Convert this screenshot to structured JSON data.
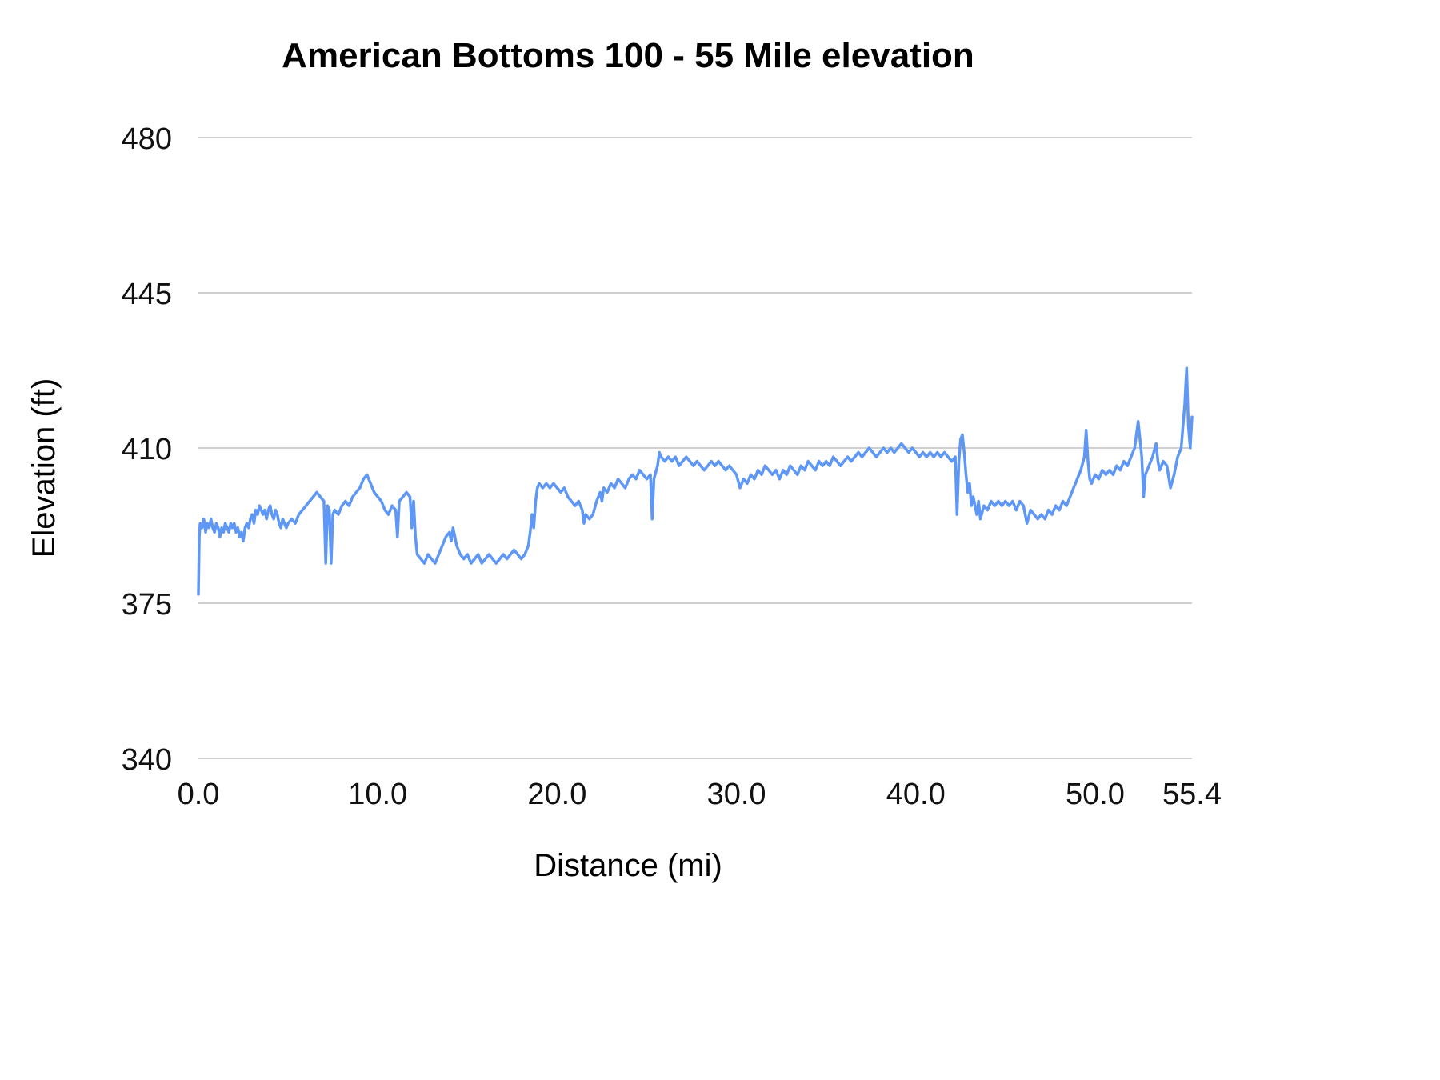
{
  "title": "American Bottoms 100 - 55 Mile elevation",
  "chart_data": {
    "type": "line",
    "title": "American Bottoms 100 - 55 Mile elevation",
    "xlabel": "Distance (mi)",
    "ylabel": "Elevation (ft)",
    "xlim": [
      0,
      55.4
    ],
    "ylim": [
      340,
      480
    ],
    "x_ticks": [
      0.0,
      10.0,
      20.0,
      30.0,
      40.0,
      50.0,
      55.4
    ],
    "x_tick_labels": [
      "0.0",
      "10.0",
      "20.0",
      "30.0",
      "40.0",
      "50.0",
      "55.4"
    ],
    "y_ticks": [
      340,
      375,
      410,
      445,
      480
    ],
    "y_tick_labels": [
      "340",
      "375",
      "410",
      "445",
      "480"
    ],
    "grid": true,
    "legend": "none",
    "line_color": "#5e97f6",
    "grid_color": "#cfcfcf",
    "points": [
      [
        0,
        377
      ],
      [
        0.05,
        390
      ],
      [
        0.1,
        393
      ],
      [
        0.2,
        392
      ],
      [
        0.3,
        394
      ],
      [
        0.4,
        391
      ],
      [
        0.5,
        393
      ],
      [
        0.6,
        392
      ],
      [
        0.7,
        394
      ],
      [
        0.8,
        392
      ],
      [
        0.9,
        391
      ],
      [
        1.0,
        393
      ],
      [
        1.1,
        392
      ],
      [
        1.2,
        390
      ],
      [
        1.3,
        392
      ],
      [
        1.4,
        391
      ],
      [
        1.5,
        393
      ],
      [
        1.6,
        392
      ],
      [
        1.7,
        391
      ],
      [
        1.8,
        393
      ],
      [
        1.9,
        392
      ],
      [
        2.0,
        393
      ],
      [
        2.1,
        391
      ],
      [
        2.2,
        392
      ],
      [
        2.3,
        390
      ],
      [
        2.4,
        391
      ],
      [
        2.5,
        389
      ],
      [
        2.6,
        392
      ],
      [
        2.7,
        393
      ],
      [
        2.8,
        392
      ],
      [
        2.9,
        394
      ],
      [
        3.0,
        395
      ],
      [
        3.1,
        393
      ],
      [
        3.2,
        396
      ],
      [
        3.3,
        395
      ],
      [
        3.4,
        397
      ],
      [
        3.5,
        396
      ],
      [
        3.6,
        395
      ],
      [
        3.7,
        396
      ],
      [
        3.8,
        394
      ],
      [
        3.9,
        396
      ],
      [
        4.0,
        397
      ],
      [
        4.1,
        395
      ],
      [
        4.2,
        394
      ],
      [
        4.3,
        396
      ],
      [
        4.4,
        395
      ],
      [
        4.5,
        393
      ],
      [
        4.6,
        392
      ],
      [
        4.7,
        394
      ],
      [
        4.8,
        393
      ],
      [
        4.9,
        392
      ],
      [
        5.0,
        393
      ],
      [
        5.2,
        394
      ],
      [
        5.4,
        393
      ],
      [
        5.6,
        395
      ],
      [
        5.8,
        396
      ],
      [
        6.0,
        397
      ],
      [
        6.2,
        398
      ],
      [
        6.4,
        399
      ],
      [
        6.6,
        400
      ],
      [
        6.8,
        399
      ],
      [
        7.0,
        398
      ],
      [
        7.1,
        384
      ],
      [
        7.2,
        397
      ],
      [
        7.3,
        396
      ],
      [
        7.4,
        384
      ],
      [
        7.5,
        395
      ],
      [
        7.6,
        396
      ],
      [
        7.8,
        395
      ],
      [
        8.0,
        397
      ],
      [
        8.2,
        398
      ],
      [
        8.4,
        397
      ],
      [
        8.6,
        399
      ],
      [
        8.8,
        400
      ],
      [
        9.0,
        401
      ],
      [
        9.2,
        403
      ],
      [
        9.4,
        404
      ],
      [
        9.6,
        402
      ],
      [
        9.8,
        400
      ],
      [
        10.0,
        399
      ],
      [
        10.2,
        398
      ],
      [
        10.4,
        396
      ],
      [
        10.6,
        395
      ],
      [
        10.8,
        397
      ],
      [
        11.0,
        396
      ],
      [
        11.1,
        390
      ],
      [
        11.2,
        398
      ],
      [
        11.4,
        399
      ],
      [
        11.6,
        400
      ],
      [
        11.8,
        399
      ],
      [
        11.9,
        392
      ],
      [
        12.0,
        398
      ],
      [
        12.1,
        390
      ],
      [
        12.2,
        386
      ],
      [
        12.4,
        385
      ],
      [
        12.6,
        384
      ],
      [
        12.8,
        386
      ],
      [
        13.0,
        385
      ],
      [
        13.2,
        384
      ],
      [
        13.4,
        386
      ],
      [
        13.6,
        388
      ],
      [
        13.8,
        390
      ],
      [
        14.0,
        391
      ],
      [
        14.1,
        389
      ],
      [
        14.2,
        392
      ],
      [
        14.3,
        390
      ],
      [
        14.4,
        388
      ],
      [
        14.6,
        386
      ],
      [
        14.8,
        385
      ],
      [
        15.0,
        386
      ],
      [
        15.2,
        384
      ],
      [
        15.4,
        385
      ],
      [
        15.6,
        386
      ],
      [
        15.8,
        384
      ],
      [
        16.0,
        385
      ],
      [
        16.2,
        386
      ],
      [
        16.4,
        385
      ],
      [
        16.6,
        384
      ],
      [
        16.8,
        385
      ],
      [
        17.0,
        386
      ],
      [
        17.2,
        385
      ],
      [
        17.4,
        386
      ],
      [
        17.6,
        387
      ],
      [
        17.8,
        386
      ],
      [
        18.0,
        385
      ],
      [
        18.2,
        386
      ],
      [
        18.4,
        388
      ],
      [
        18.5,
        391
      ],
      [
        18.6,
        395
      ],
      [
        18.7,
        392
      ],
      [
        18.8,
        398
      ],
      [
        18.9,
        401
      ],
      [
        19.0,
        402
      ],
      [
        19.2,
        401
      ],
      [
        19.4,
        402
      ],
      [
        19.6,
        401
      ],
      [
        19.8,
        402
      ],
      [
        20.0,
        401
      ],
      [
        20.2,
        400
      ],
      [
        20.4,
        401
      ],
      [
        20.6,
        399
      ],
      [
        20.8,
        398
      ],
      [
        21.0,
        397
      ],
      [
        21.2,
        398
      ],
      [
        21.4,
        396
      ],
      [
        21.5,
        393
      ],
      [
        21.6,
        395
      ],
      [
        21.8,
        394
      ],
      [
        22.0,
        395
      ],
      [
        22.2,
        398
      ],
      [
        22.4,
        400
      ],
      [
        22.5,
        398
      ],
      [
        22.6,
        401
      ],
      [
        22.8,
        400
      ],
      [
        23.0,
        402
      ],
      [
        23.2,
        401
      ],
      [
        23.4,
        403
      ],
      [
        23.6,
        402
      ],
      [
        23.8,
        401
      ],
      [
        24.0,
        403
      ],
      [
        24.2,
        404
      ],
      [
        24.4,
        403
      ],
      [
        24.6,
        405
      ],
      [
        24.8,
        404
      ],
      [
        25.0,
        403
      ],
      [
        25.2,
        404
      ],
      [
        25.3,
        394
      ],
      [
        25.4,
        403
      ],
      [
        25.6,
        406
      ],
      [
        25.7,
        409
      ],
      [
        25.8,
        408
      ],
      [
        26.0,
        407
      ],
      [
        26.2,
        408
      ],
      [
        26.4,
        407
      ],
      [
        26.6,
        408
      ],
      [
        26.8,
        406
      ],
      [
        27.0,
        407
      ],
      [
        27.2,
        408
      ],
      [
        27.4,
        407
      ],
      [
        27.6,
        406
      ],
      [
        27.8,
        407
      ],
      [
        28.0,
        406
      ],
      [
        28.2,
        405
      ],
      [
        28.4,
        406
      ],
      [
        28.6,
        407
      ],
      [
        28.8,
        406
      ],
      [
        29.0,
        407
      ],
      [
        29.2,
        406
      ],
      [
        29.4,
        405
      ],
      [
        29.6,
        406
      ],
      [
        29.8,
        405
      ],
      [
        30.0,
        404
      ],
      [
        30.2,
        401
      ],
      [
        30.4,
        403
      ],
      [
        30.6,
        402
      ],
      [
        30.8,
        404
      ],
      [
        31.0,
        403
      ],
      [
        31.2,
        405
      ],
      [
        31.4,
        404
      ],
      [
        31.6,
        406
      ],
      [
        31.8,
        405
      ],
      [
        32.0,
        404
      ],
      [
        32.2,
        405
      ],
      [
        32.4,
        403
      ],
      [
        32.6,
        405
      ],
      [
        32.8,
        404
      ],
      [
        33.0,
        406
      ],
      [
        33.2,
        405
      ],
      [
        33.4,
        404
      ],
      [
        33.6,
        406
      ],
      [
        33.8,
        405
      ],
      [
        34.0,
        407
      ],
      [
        34.2,
        406
      ],
      [
        34.4,
        405
      ],
      [
        34.6,
        407
      ],
      [
        34.8,
        406
      ],
      [
        35.0,
        407
      ],
      [
        35.2,
        406
      ],
      [
        35.4,
        408
      ],
      [
        35.6,
        407
      ],
      [
        35.8,
        406
      ],
      [
        36.0,
        407
      ],
      [
        36.2,
        408
      ],
      [
        36.4,
        407
      ],
      [
        36.6,
        408
      ],
      [
        36.8,
        409
      ],
      [
        37.0,
        408
      ],
      [
        37.2,
        409
      ],
      [
        37.4,
        410
      ],
      [
        37.6,
        409
      ],
      [
        37.8,
        408
      ],
      [
        38.0,
        409
      ],
      [
        38.2,
        410
      ],
      [
        38.4,
        409
      ],
      [
        38.6,
        410
      ],
      [
        38.8,
        409
      ],
      [
        39.0,
        410
      ],
      [
        39.2,
        411
      ],
      [
        39.4,
        410
      ],
      [
        39.6,
        409
      ],
      [
        39.8,
        410
      ],
      [
        40.0,
        409
      ],
      [
        40.2,
        408
      ],
      [
        40.4,
        409
      ],
      [
        40.6,
        408
      ],
      [
        40.8,
        409
      ],
      [
        41.0,
        408
      ],
      [
        41.2,
        409
      ],
      [
        41.4,
        408
      ],
      [
        41.6,
        409
      ],
      [
        41.8,
        408
      ],
      [
        42.0,
        407
      ],
      [
        42.2,
        408
      ],
      [
        42.3,
        395
      ],
      [
        42.4,
        407
      ],
      [
        42.5,
        412
      ],
      [
        42.6,
        413
      ],
      [
        42.7,
        409
      ],
      [
        42.8,
        404
      ],
      [
        42.9,
        400
      ],
      [
        43.0,
        402
      ],
      [
        43.1,
        397
      ],
      [
        43.2,
        399
      ],
      [
        43.4,
        395
      ],
      [
        43.5,
        398
      ],
      [
        43.6,
        394
      ],
      [
        43.8,
        397
      ],
      [
        44.0,
        396
      ],
      [
        44.2,
        398
      ],
      [
        44.4,
        397
      ],
      [
        44.6,
        398
      ],
      [
        44.8,
        397
      ],
      [
        45.0,
        398
      ],
      [
        45.2,
        397
      ],
      [
        45.4,
        398
      ],
      [
        45.6,
        396
      ],
      [
        45.8,
        398
      ],
      [
        46.0,
        397
      ],
      [
        46.2,
        393
      ],
      [
        46.4,
        396
      ],
      [
        46.6,
        395
      ],
      [
        46.8,
        394
      ],
      [
        47.0,
        395
      ],
      [
        47.2,
        394
      ],
      [
        47.4,
        396
      ],
      [
        47.6,
        395
      ],
      [
        47.8,
        397
      ],
      [
        48.0,
        396
      ],
      [
        48.2,
        398
      ],
      [
        48.4,
        397
      ],
      [
        48.6,
        399
      ],
      [
        48.8,
        401
      ],
      [
        49.0,
        403
      ],
      [
        49.2,
        405
      ],
      [
        49.4,
        408
      ],
      [
        49.5,
        414
      ],
      [
        49.6,
        407
      ],
      [
        49.7,
        403
      ],
      [
        49.8,
        402
      ],
      [
        50.0,
        404
      ],
      [
        50.2,
        403
      ],
      [
        50.4,
        405
      ],
      [
        50.6,
        404
      ],
      [
        50.8,
        405
      ],
      [
        51.0,
        404
      ],
      [
        51.2,
        406
      ],
      [
        51.4,
        405
      ],
      [
        51.6,
        407
      ],
      [
        51.8,
        406
      ],
      [
        52.0,
        408
      ],
      [
        52.2,
        410
      ],
      [
        52.4,
        416
      ],
      [
        52.5,
        412
      ],
      [
        52.6,
        408
      ],
      [
        52.7,
        399
      ],
      [
        52.8,
        404
      ],
      [
        53.0,
        406
      ],
      [
        53.2,
        408
      ],
      [
        53.4,
        411
      ],
      [
        53.5,
        407
      ],
      [
        53.6,
        405
      ],
      [
        53.8,
        407
      ],
      [
        54.0,
        406
      ],
      [
        54.2,
        401
      ],
      [
        54.4,
        404
      ],
      [
        54.6,
        408
      ],
      [
        54.8,
        410
      ],
      [
        55.0,
        420
      ],
      [
        55.1,
        428
      ],
      [
        55.2,
        415
      ],
      [
        55.3,
        410
      ],
      [
        55.4,
        417
      ]
    ]
  }
}
